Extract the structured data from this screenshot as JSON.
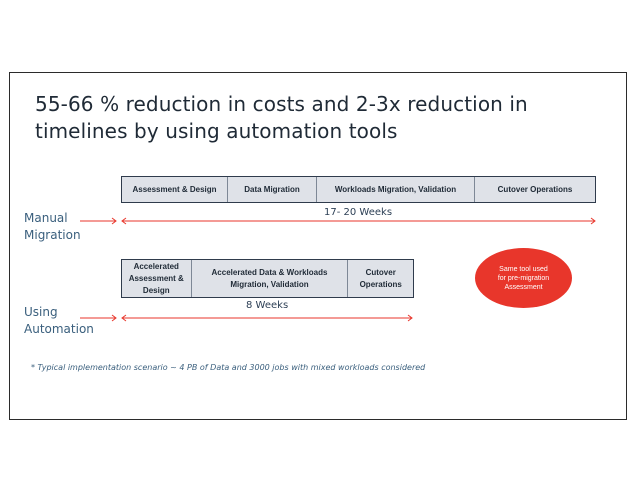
{
  "title": "55-66 % reduction in costs and 2-3x reduction in timelines by using automation tools",
  "manual": {
    "label": "Manual Migration",
    "phases": [
      "Assessment & Design",
      "Data Migration",
      "Workloads Migration, Validation",
      "Cutover Operations"
    ],
    "duration": "17- 20 Weeks"
  },
  "automation": {
    "label": "Using Automation",
    "phases": [
      "Accelerated Assessment & Design",
      "Accelerated Data & Workloads Migration, Validation",
      "Cutover Operations"
    ],
    "duration": "8 Weeks"
  },
  "callout": "Same tool used for pre-migration Assessment",
  "footnote": "* Typical  implementation scenario  ~ 4 PB of Data and 3000  jobs with mixed workloads considered",
  "colors": {
    "arrow": "#e8362b",
    "phase_fill": "#dfe2e8",
    "callout_fill": "#e8362b",
    "label_text": "#3a5f7d"
  }
}
